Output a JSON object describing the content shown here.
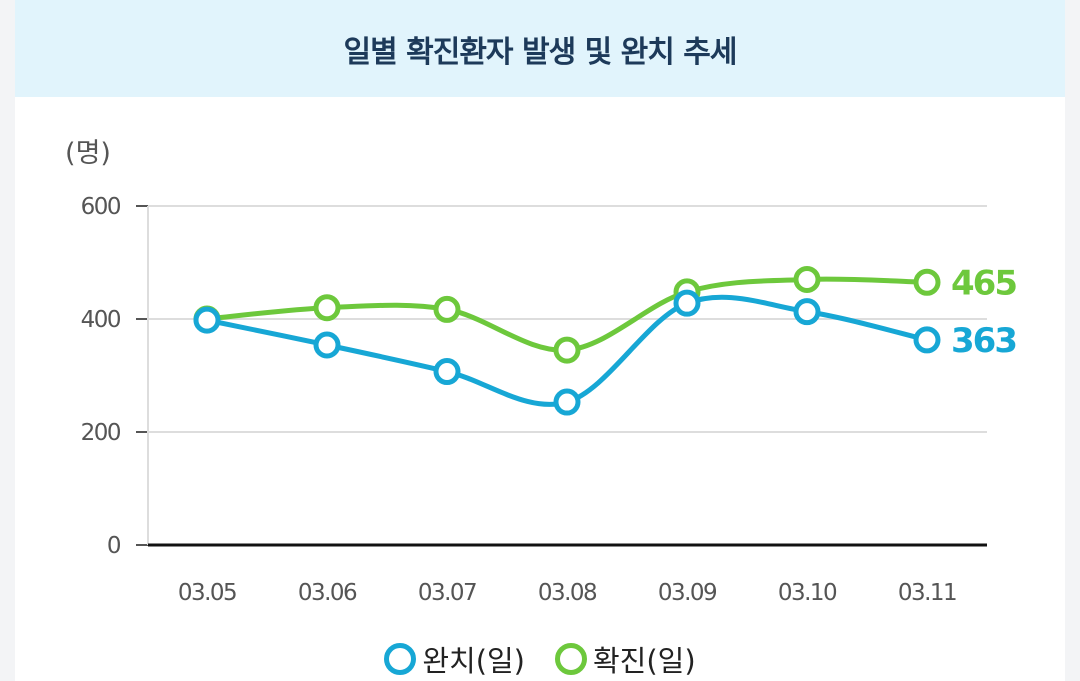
{
  "chart_data": {
    "type": "line",
    "title": "일별 확진환자 발생 및 완치 추세",
    "unit_label": "(명)",
    "categories": [
      "03.05",
      "03.06",
      "03.07",
      "03.08",
      "03.09",
      "03.10",
      "03.11"
    ],
    "ylim": [
      0,
      600
    ],
    "yticks": [
      0,
      200,
      400,
      600
    ],
    "grid": true,
    "legend_position": "bottom",
    "series": [
      {
        "name": "확진(일)",
        "values": [
          400,
          420,
          417,
          345,
          448,
          470,
          465
        ],
        "color": "#6dc83c",
        "end_label": "465"
      },
      {
        "name": "완치(일)",
        "values": [
          398,
          354,
          307,
          253,
          428,
          413,
          363
        ],
        "color": "#17a7d5",
        "end_label": "363"
      }
    ]
  },
  "legend": [
    {
      "label": "완치(일)",
      "color": "#17a7d5"
    },
    {
      "label": "확진(일)",
      "color": "#6dc83c"
    }
  ]
}
